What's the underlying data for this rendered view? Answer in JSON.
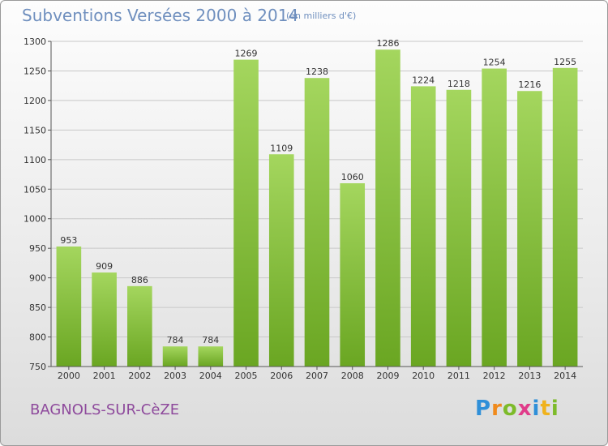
{
  "header": {
    "title": "Subventions Versées 2000 à 2014",
    "unit": "(en milliers d'€)"
  },
  "footer": {
    "commune": "BAGNOLS-SUR-CèZE",
    "logo_letters": [
      {
        "ch": "P",
        "color": "#2f8fd8"
      },
      {
        "ch": "r",
        "color": "#f08a1c"
      },
      {
        "ch": "o",
        "color": "#7dbb2a"
      },
      {
        "ch": "x",
        "color": "#e03c8a"
      },
      {
        "ch": "i",
        "color": "#2f8fd8"
      },
      {
        "ch": "t",
        "color": "#f0b21c"
      },
      {
        "ch": "i",
        "color": "#7dbb2a"
      }
    ]
  },
  "colors": {
    "bar_top": "#a4d65e",
    "bar_bottom": "#6aa622",
    "grid": "#c8c8c8",
    "axis": "#555555"
  },
  "chart_data": {
    "type": "bar",
    "title": "Subventions Versées 2000 à 2014",
    "subtitle": "(en milliers d'€)",
    "xlabel": "",
    "ylabel": "",
    "categories": [
      "2000",
      "2001",
      "2002",
      "2003",
      "2004",
      "2005",
      "2006",
      "2007",
      "2008",
      "2009",
      "2010",
      "2011",
      "2012",
      "2013",
      "2014"
    ],
    "values": [
      953,
      909,
      886,
      784,
      784,
      1269,
      1109,
      1238,
      1060,
      1286,
      1224,
      1218,
      1254,
      1216,
      1255
    ],
    "ylim": [
      750,
      1300
    ],
    "yticks": [
      750,
      800,
      850,
      900,
      950,
      1000,
      1050,
      1100,
      1150,
      1200,
      1250,
      1300
    ],
    "grid": true,
    "legend": "none"
  }
}
